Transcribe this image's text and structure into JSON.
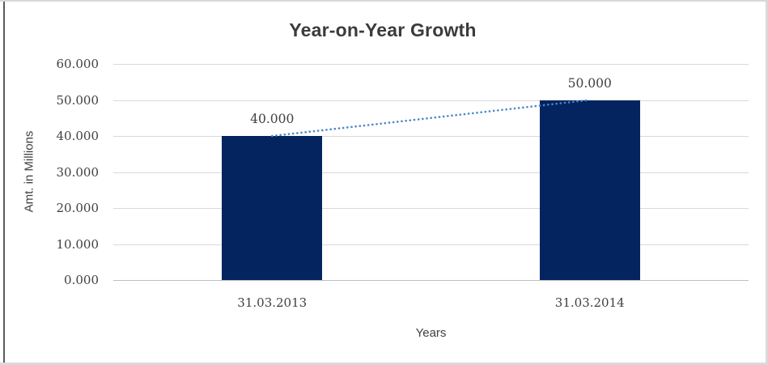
{
  "window": {
    "background": "#FFFFFF",
    "frame_border_color": "#D9D9D9",
    "left_rule_color": "#5A5A5A"
  },
  "chart_data": {
    "type": "bar",
    "title": "Year-on-Year Growth",
    "categories": [
      "31.03.2013",
      "31.03.2014"
    ],
    "values": [
      40.0,
      50.0
    ],
    "data_labels": [
      "40.000",
      "50.000"
    ],
    "xlabel": "Years",
    "ylabel": "Amt. in Millions",
    "ylim": [
      0,
      60
    ],
    "ytick_step": 10,
    "ytick_labels": [
      "0.000",
      "10.000",
      "20.000",
      "30.000",
      "40.000",
      "50.000",
      "60.000"
    ],
    "legend": "none",
    "grid": "horizontal",
    "trendline": {
      "style": "dotted",
      "from_label": "40.000",
      "to_label": "50.000"
    },
    "colors": {
      "bar": "#03245F",
      "trendline": "#4A86C8",
      "gridline": "#D9D9D9",
      "axis_line": "#BFBFBF",
      "text": "#404040",
      "title_text": "#3B3B3B"
    }
  }
}
